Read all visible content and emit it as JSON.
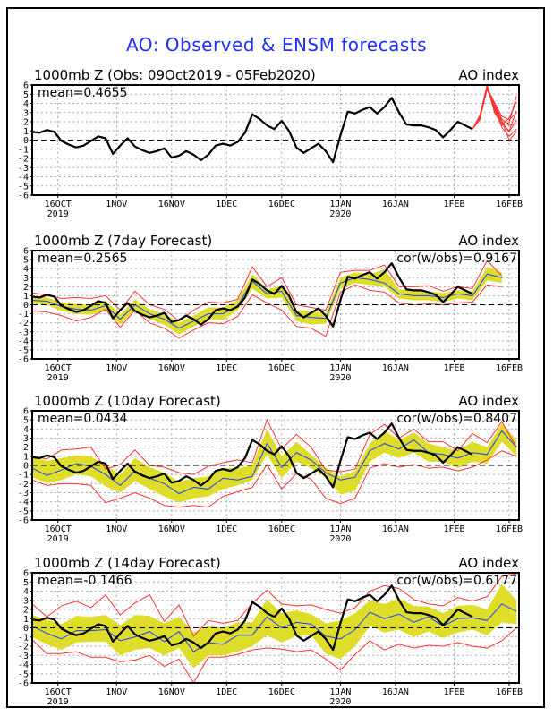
{
  "main_title": "AO: Observed & ENSM forecasts",
  "chart_data": [
    {
      "type": "line",
      "title": "1000mb Z (Obs: 09Oct2019 - 05Feb2020)",
      "right_label": "AO index",
      "annotation": "mean=0.4655",
      "correlation": null,
      "ylim": [
        -6,
        6
      ],
      "yticks": [
        -6,
        -5,
        -4,
        -3,
        -2,
        -1,
        0,
        1,
        2,
        3,
        4,
        5,
        6
      ],
      "x_start": "09Oct2019",
      "x_days": 133,
      "xticks": [
        {
          "day": 7,
          "label": "16OCT",
          "sub": "2019"
        },
        {
          "day": 23,
          "label": "1NOV"
        },
        {
          "day": 38,
          "label": "16NOV"
        },
        {
          "day": 53,
          "label": "1DEC"
        },
        {
          "day": 68,
          "label": "16DEC"
        },
        {
          "day": 84,
          "label": "1JAN",
          "sub": "2020"
        },
        {
          "day": 99,
          "label": "16JAN"
        },
        {
          "day": 115,
          "label": "1FEB"
        },
        {
          "day": 130,
          "label": "16FEB"
        }
      ],
      "grid": true,
      "zero_line": "dashed",
      "observed": {
        "days": [
          0,
          2,
          4,
          6,
          8,
          10,
          12,
          14,
          16,
          18,
          20,
          22,
          24,
          26,
          28,
          30,
          32,
          34,
          36,
          38,
          40,
          42,
          44,
          46,
          48,
          50,
          52,
          54,
          56,
          58,
          60,
          62,
          64,
          66,
          68,
          70,
          72,
          74,
          76,
          78,
          80,
          82,
          84,
          86,
          88,
          90,
          92,
          94,
          96,
          98,
          100,
          102,
          104,
          106,
          108,
          110,
          112,
          114,
          116,
          118,
          120
        ],
        "values": [
          0.9,
          0.8,
          1.1,
          0.9,
          -0.1,
          -0.5,
          -0.8,
          -0.6,
          -0.1,
          0.4,
          0.2,
          -1.5,
          -0.6,
          0.2,
          -0.7,
          -1.1,
          -1.4,
          -1.2,
          -0.9,
          -1.9,
          -1.7,
          -1.2,
          -1.6,
          -2.2,
          -1.6,
          -0.6,
          -0.4,
          -0.6,
          -0.2,
          0.8,
          2.8,
          2.3,
          1.6,
          1.2,
          2.1,
          1.0,
          -0.8,
          -1.4,
          -0.9,
          -0.4,
          -1.2,
          -2.4,
          0.5,
          3.1,
          2.9,
          3.3,
          3.6,
          2.9,
          3.6,
          4.6,
          3.0,
          1.7,
          1.6,
          1.6,
          1.4,
          1.1,
          0.3,
          1.1,
          2.0,
          1.6,
          1.2
        ]
      },
      "ensemble_forecasts": {
        "color": "#ff3333",
        "days": [
          120,
          122,
          124,
          126,
          128,
          130,
          132
        ],
        "members": [
          [
            1.2,
            2.4,
            5.9,
            3.6,
            1.9,
            1.0,
            3.2
          ],
          [
            1.2,
            2.6,
            5.6,
            3.9,
            2.3,
            1.6,
            1.8
          ],
          [
            1.2,
            2.3,
            6.0,
            3.2,
            1.6,
            1.9,
            4.8
          ],
          [
            1.2,
            2.5,
            5.8,
            3.5,
            1.4,
            0.4,
            1.2
          ],
          [
            1.2,
            2.2,
            5.7,
            4.1,
            2.6,
            2.2,
            3.0
          ],
          [
            1.2,
            2.7,
            6.0,
            3.3,
            1.9,
            0.9,
            2.2
          ],
          [
            1.2,
            2.4,
            5.5,
            3.8,
            2.1,
            0.0,
            0.9
          ],
          [
            1.2,
            2.5,
            5.9,
            3.0,
            1.7,
            2.4,
            4.2
          ]
        ]
      }
    },
    {
      "type": "line",
      "title": "1000mb Z (7day Forecast)",
      "right_label": "AO index",
      "annotation": "mean=0.2565",
      "correlation": "cor(w/obs)=0.9167",
      "ylim": [
        -6,
        6
      ],
      "forecast_days": [
        0,
        4,
        8,
        12,
        16,
        20,
        24,
        28,
        32,
        36,
        40,
        44,
        48,
        52,
        56,
        60,
        64,
        68,
        72,
        76,
        80,
        84,
        88,
        92,
        96,
        100,
        104,
        108,
        112,
        116,
        120,
        124,
        128
      ],
      "ens_mean": [
        0.5,
        0.4,
        -0.2,
        -0.5,
        -0.6,
        -0.1,
        -1.6,
        0.0,
        -1.0,
        -1.6,
        -2.6,
        -1.8,
        -1.0,
        -1.0,
        -0.1,
        2.6,
        1.2,
        1.5,
        -1.2,
        -1.4,
        -1.5,
        2.4,
        3.0,
        2.8,
        2.4,
        1.2,
        1.0,
        1.0,
        0.8,
        1.2,
        1.0,
        3.4,
        3.0
      ],
      "spread_upper": [
        0.9,
        0.8,
        0.3,
        0.1,
        -0.1,
        0.5,
        -1.1,
        0.6,
        -0.5,
        -1.0,
        -2.0,
        -1.2,
        -0.3,
        -0.3,
        0.5,
        3.4,
        1.7,
        2.1,
        -0.6,
        -0.7,
        -0.9,
        3.0,
        3.6,
        3.4,
        3.9,
        1.7,
        1.5,
        1.5,
        1.3,
        1.6,
        1.5,
        4.2,
        3.6
      ],
      "spread_lower": [
        0.1,
        0.0,
        -0.7,
        -1.0,
        -1.1,
        -0.6,
        -2.2,
        -0.6,
        -1.6,
        -2.2,
        -3.3,
        -2.4,
        -1.6,
        -1.7,
        -0.6,
        1.8,
        0.7,
        0.8,
        -1.8,
        -2.2,
        -2.1,
        1.8,
        2.4,
        2.2,
        2.0,
        0.7,
        0.5,
        0.5,
        0.3,
        0.7,
        0.5,
        2.7,
        2.4
      ],
      "ens_max": [
        1.3,
        1.1,
        0.7,
        0.8,
        0.7,
        1.0,
        -0.6,
        1.5,
        0.0,
        -0.5,
        -1.8,
        -0.6,
        0.3,
        0.2,
        0.6,
        4.2,
        2.0,
        3.0,
        0.0,
        -0.3,
        -0.6,
        3.6,
        3.8,
        3.8,
        4.4,
        2.0,
        2.0,
        2.1,
        1.5,
        2.0,
        1.8,
        4.9,
        3.2
      ],
      "ens_min": [
        -0.7,
        -0.8,
        -1.2,
        -1.8,
        -1.4,
        -0.5,
        -2.5,
        -0.6,
        -2.0,
        -2.6,
        -3.7,
        -2.8,
        -2.0,
        -2.1,
        -1.3,
        1.1,
        0.2,
        -0.6,
        -2.4,
        -2.6,
        -3.5,
        1.4,
        2.2,
        1.6,
        1.4,
        0.2,
        0.0,
        0.1,
        0.0,
        0.2,
        0.3,
        2.2,
        2.0
      ]
    },
    {
      "type": "line",
      "title": "1000mb Z (10day Forecast)",
      "right_label": "AO index",
      "annotation": "mean=0.0434",
      "correlation": "cor(w/obs)=0.8407",
      "ylim": [
        -6,
        6
      ],
      "forecast_days": [
        0,
        4,
        8,
        12,
        16,
        20,
        24,
        28,
        32,
        36,
        40,
        44,
        48,
        52,
        56,
        60,
        64,
        68,
        72,
        76,
        80,
        84,
        88,
        92,
        96,
        100,
        104,
        108,
        112,
        116,
        120,
        124,
        128,
        132
      ],
      "ens_mean": [
        -0.3,
        -1.1,
        -0.5,
        0.2,
        -0.1,
        -1.0,
        -2.2,
        -0.6,
        -1.4,
        -2.0,
        -3.1,
        -2.4,
        -2.6,
        -1.4,
        -1.6,
        -1.2,
        2.4,
        -0.2,
        1.4,
        0.6,
        -0.8,
        -1.6,
        -1.3,
        1.6,
        2.4,
        1.8,
        2.8,
        1.4,
        1.2,
        0.8,
        1.4,
        1.2,
        3.8,
        2.0
      ],
      "spread_upper": [
        1.0,
        0.5,
        0.8,
        1.1,
        1.0,
        0.0,
        -1.0,
        0.8,
        -0.2,
        -0.8,
        -1.8,
        -1.4,
        -1.2,
        -0.3,
        -0.3,
        0.0,
        4.0,
        1.0,
        2.6,
        1.2,
        -0.3,
        -1.2,
        -0.6,
        2.4,
        3.8,
        2.8,
        3.6,
        2.4,
        2.0,
        1.6,
        2.6,
        2.0,
        4.6,
        2.8
      ],
      "spread_lower": [
        -1.3,
        -1.9,
        -1.6,
        -1.0,
        -1.2,
        -2.3,
        -3.0,
        -1.7,
        -2.6,
        -3.4,
        -4.1,
        -3.6,
        -3.4,
        -2.6,
        -2.2,
        -1.6,
        1.2,
        -1.4,
        0.4,
        -0.3,
        -1.3,
        -3.2,
        -2.8,
        0.4,
        1.4,
        0.8,
        1.4,
        0.4,
        0.4,
        -0.3,
        0.4,
        0.2,
        2.6,
        1.0
      ],
      "ens_max": [
        1.0,
        0.7,
        1.7,
        1.8,
        2.0,
        -0.4,
        0.1,
        1.7,
        0.0,
        -0.2,
        -0.8,
        -1.0,
        -0.1,
        0.3,
        0.6,
        0.3,
        5.0,
        1.8,
        3.4,
        2.0,
        -0.5,
        -0.7,
        -0.4,
        3.4,
        4.5,
        3.0,
        4.0,
        2.6,
        2.6,
        1.6,
        3.5,
        2.5,
        4.8,
        2.0
      ],
      "ens_min": [
        -1.6,
        -2.2,
        -2.0,
        -2.0,
        -2.2,
        -4.1,
        -3.6,
        -3.0,
        -3.6,
        -4.4,
        -4.6,
        -4.4,
        -4.6,
        -3.4,
        -2.9,
        -2.4,
        0.1,
        -2.6,
        -0.9,
        -1.5,
        -3.6,
        -4.2,
        -3.6,
        -0.3,
        0.2,
        -0.2,
        0.1,
        -0.3,
        -0.2,
        -0.6,
        -0.2,
        0.6,
        1.6,
        1.0
      ]
    },
    {
      "type": "line",
      "title": "1000mb Z (14day Forecast)",
      "right_label": "AO index",
      "annotation": "mean=-0.1466",
      "correlation": "cor(w/obs)=0.6177",
      "ylim": [
        -6,
        6
      ],
      "forecast_days": [
        0,
        4,
        8,
        12,
        16,
        20,
        24,
        28,
        32,
        36,
        40,
        44,
        48,
        52,
        56,
        60,
        64,
        68,
        72,
        76,
        80,
        84,
        88,
        92,
        96,
        100,
        104,
        108,
        112,
        116,
        120,
        124,
        128,
        132
      ],
      "ens_mean": [
        0.2,
        -0.6,
        -1.2,
        -0.3,
        -0.3,
        -0.2,
        -1.4,
        -1.0,
        -0.4,
        -1.5,
        -0.4,
        -2.6,
        -1.6,
        -1.8,
        -0.8,
        -0.8,
        1.2,
        0.0,
        0.6,
        0.4,
        -0.9,
        -1.2,
        -0.2,
        1.7,
        1.0,
        1.5,
        0.6,
        1.2,
        0.2,
        1.0,
        1.1,
        0.8,
        2.6,
        1.8
      ],
      "spread_upper": [
        1.4,
        0.9,
        0.4,
        1.3,
        1.2,
        1.4,
        0.3,
        1.4,
        1.3,
        0.5,
        1.2,
        -0.5,
        0.2,
        0.0,
        0.6,
        0.6,
        3.1,
        1.6,
        1.9,
        1.5,
        0.5,
        0.8,
        1.6,
        3.0,
        2.6,
        3.2,
        2.4,
        2.3,
        1.6,
        2.4,
        2.5,
        2.0,
        4.8,
        3.0
      ],
      "spread_lower": [
        -1.0,
        -1.8,
        -2.4,
        -1.6,
        -1.5,
        -1.5,
        -3.0,
        -2.4,
        -2.2,
        -3.0,
        -2.2,
        -4.4,
        -3.0,
        -3.0,
        -2.6,
        -2.0,
        -0.8,
        -1.6,
        -0.9,
        -0.8,
        -2.8,
        -3.4,
        -2.0,
        0.2,
        -0.5,
        -0.2,
        -1.0,
        -0.4,
        -1.1,
        -0.5,
        -0.2,
        -0.8,
        0.6,
        0.4
      ],
      "ens_max": [
        2.6,
        1.2,
        2.4,
        2.9,
        2.2,
        3.6,
        1.4,
        2.7,
        3.6,
        0.7,
        2.5,
        -0.9,
        0.8,
        0.5,
        0.8,
        2.7,
        4.1,
        2.6,
        2.4,
        2.5,
        2.0,
        1.6,
        2.2,
        4.0,
        4.6,
        4.3,
        3.1,
        2.6,
        2.4,
        3.3,
        2.9,
        3.4,
        5.6,
        5.9
      ],
      "ens_min": [
        -1.3,
        -2.8,
        -2.8,
        -2.6,
        -3.2,
        -3.2,
        -3.7,
        -3.5,
        -3.0,
        -4.2,
        -3.4,
        -6.0,
        -3.2,
        -3.2,
        -2.9,
        -2.4,
        -2.2,
        -2.3,
        -2.6,
        -2.4,
        -3.4,
        -4.6,
        -2.9,
        -1.4,
        -2.4,
        -1.8,
        -2.2,
        -1.9,
        -2.0,
        -1.6,
        -2.0,
        -2.2,
        -1.4,
        0.0
      ]
    }
  ]
}
